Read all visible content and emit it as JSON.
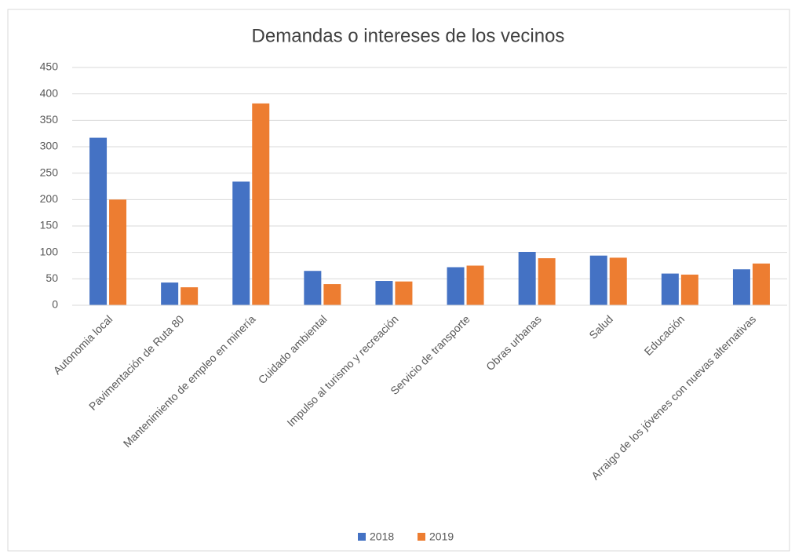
{
  "chart_data": {
    "type": "bar",
    "title": "Demandas o intereses de los vecinos",
    "categories": [
      "Autonomia local",
      "Pavimentación de Ruta 80",
      "Mantenimiento de empleo en minería",
      "Cuidado ambiental",
      "Impulso al turismo y recreación",
      "Servicio de transporte",
      "Obras urbanas",
      "Salud",
      "Educación",
      "Arraigo de los jóvenes con nuevas  alternativas"
    ],
    "series": [
      {
        "name": "2018",
        "color": "#4472c4",
        "values": [
          317,
          43,
          234,
          65,
          46,
          72,
          101,
          94,
          60,
          68
        ]
      },
      {
        "name": "2019",
        "color": "#ed7d31",
        "values": [
          200,
          34,
          382,
          40,
          45,
          75,
          89,
          90,
          58,
          79
        ]
      }
    ],
    "ylim": [
      0,
      450
    ],
    "yticks": [
      0,
      50,
      100,
      150,
      200,
      250,
      300,
      350,
      400,
      450
    ],
    "grid": true,
    "legend": "bottom"
  }
}
